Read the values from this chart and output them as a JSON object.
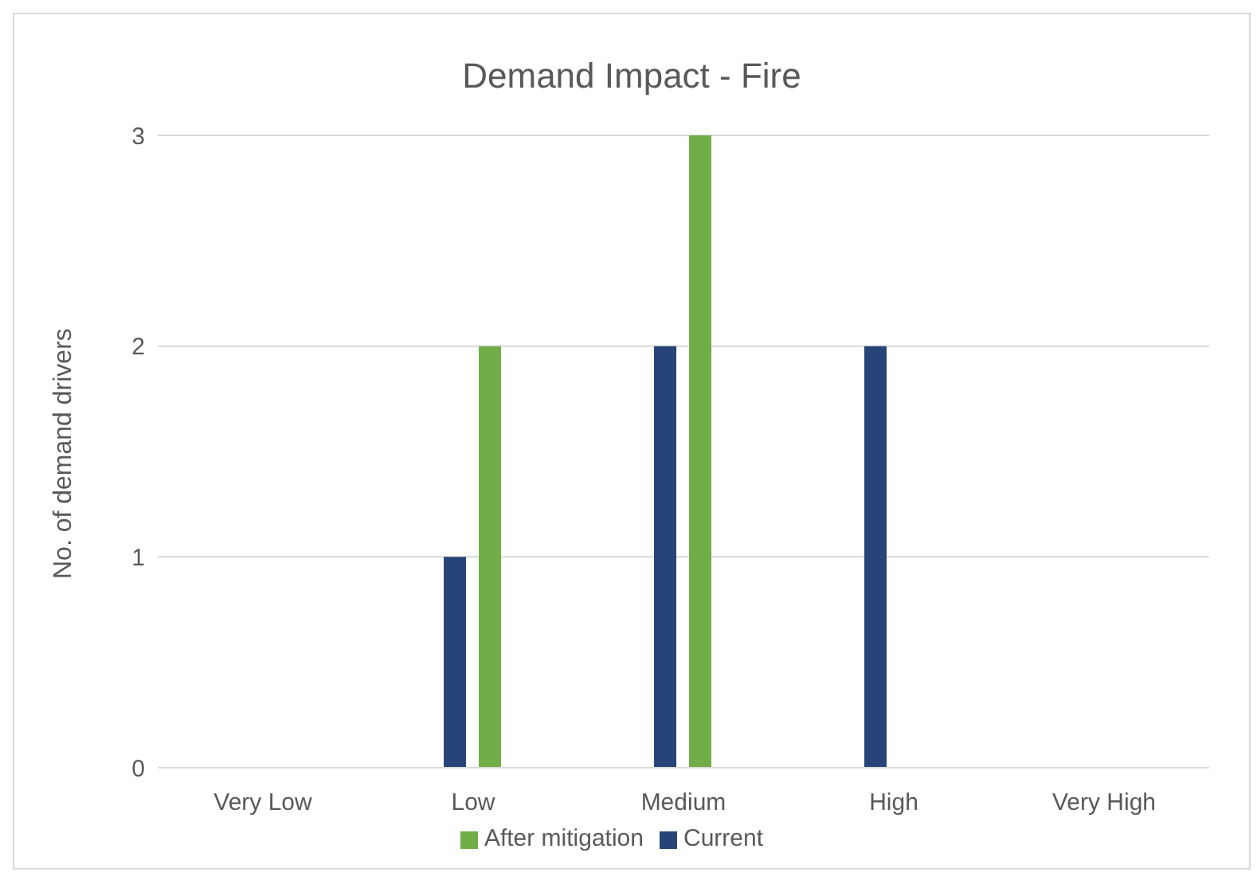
{
  "chart_data": {
    "type": "bar",
    "title": "Demand Impact - Fire",
    "ylabel": "No. of demand drivers",
    "categories": [
      "Very Low",
      "Low",
      "Medium",
      "High",
      "Very High"
    ],
    "series": [
      {
        "name": "Current",
        "color": "#264478",
        "values": [
          0,
          1,
          2,
          2,
          0
        ]
      },
      {
        "name": "After mitigation",
        "color": "#70ad47",
        "values": [
          0,
          2,
          3,
          0,
          0
        ]
      }
    ],
    "ylim": [
      0,
      3
    ],
    "yticks": [
      0,
      1,
      2,
      3
    ],
    "grid": "y",
    "legend": "bottom"
  }
}
